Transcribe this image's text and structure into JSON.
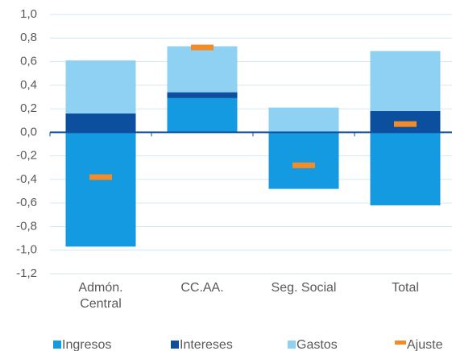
{
  "chart_data": {
    "type": "bar",
    "stacked": true,
    "categories": [
      "Admón.\nCentral",
      "CC.AA.",
      "Seg. Social",
      "Total"
    ],
    "series": [
      {
        "name": "Ingresos",
        "color": "#139ae0",
        "type": "bar",
        "values": [
          -0.97,
          0.29,
          -0.48,
          -0.62
        ]
      },
      {
        "name": "Intereses",
        "color": "#0d4f9f",
        "type": "bar",
        "values": [
          0.16,
          0.05,
          0,
          0.18
        ]
      },
      {
        "name": "Gastos",
        "color": "#8ed1f2",
        "type": "bar",
        "values": [
          0.45,
          0.39,
          0.21,
          0.51
        ]
      },
      {
        "name": "Ajuste",
        "color": "#f28c28",
        "type": "marker",
        "values": [
          -0.38,
          0.72,
          -0.28,
          0.07
        ]
      }
    ],
    "ylim": [
      -1.2,
      1.0
    ],
    "yticks": [
      {
        "value": -1.2,
        "label": "-1,2"
      },
      {
        "value": -1.0,
        "label": "-1,0"
      },
      {
        "value": -0.8,
        "label": "-0,8"
      },
      {
        "value": -0.6,
        "label": "-0,6"
      },
      {
        "value": -0.4,
        "label": "-0,4"
      },
      {
        "value": -0.2,
        "label": "-0,2"
      },
      {
        "value": 0,
        "label": "0,0"
      },
      {
        "value": 0.2,
        "label": "0,2"
      },
      {
        "value": 0.4,
        "label": "0,4"
      },
      {
        "value": 0.6,
        "label": "0,6"
      },
      {
        "value": 0.8,
        "label": "0,8"
      },
      {
        "value": 1.0,
        "label": "1,0"
      }
    ],
    "grid": true,
    "legend": "bottom"
  }
}
